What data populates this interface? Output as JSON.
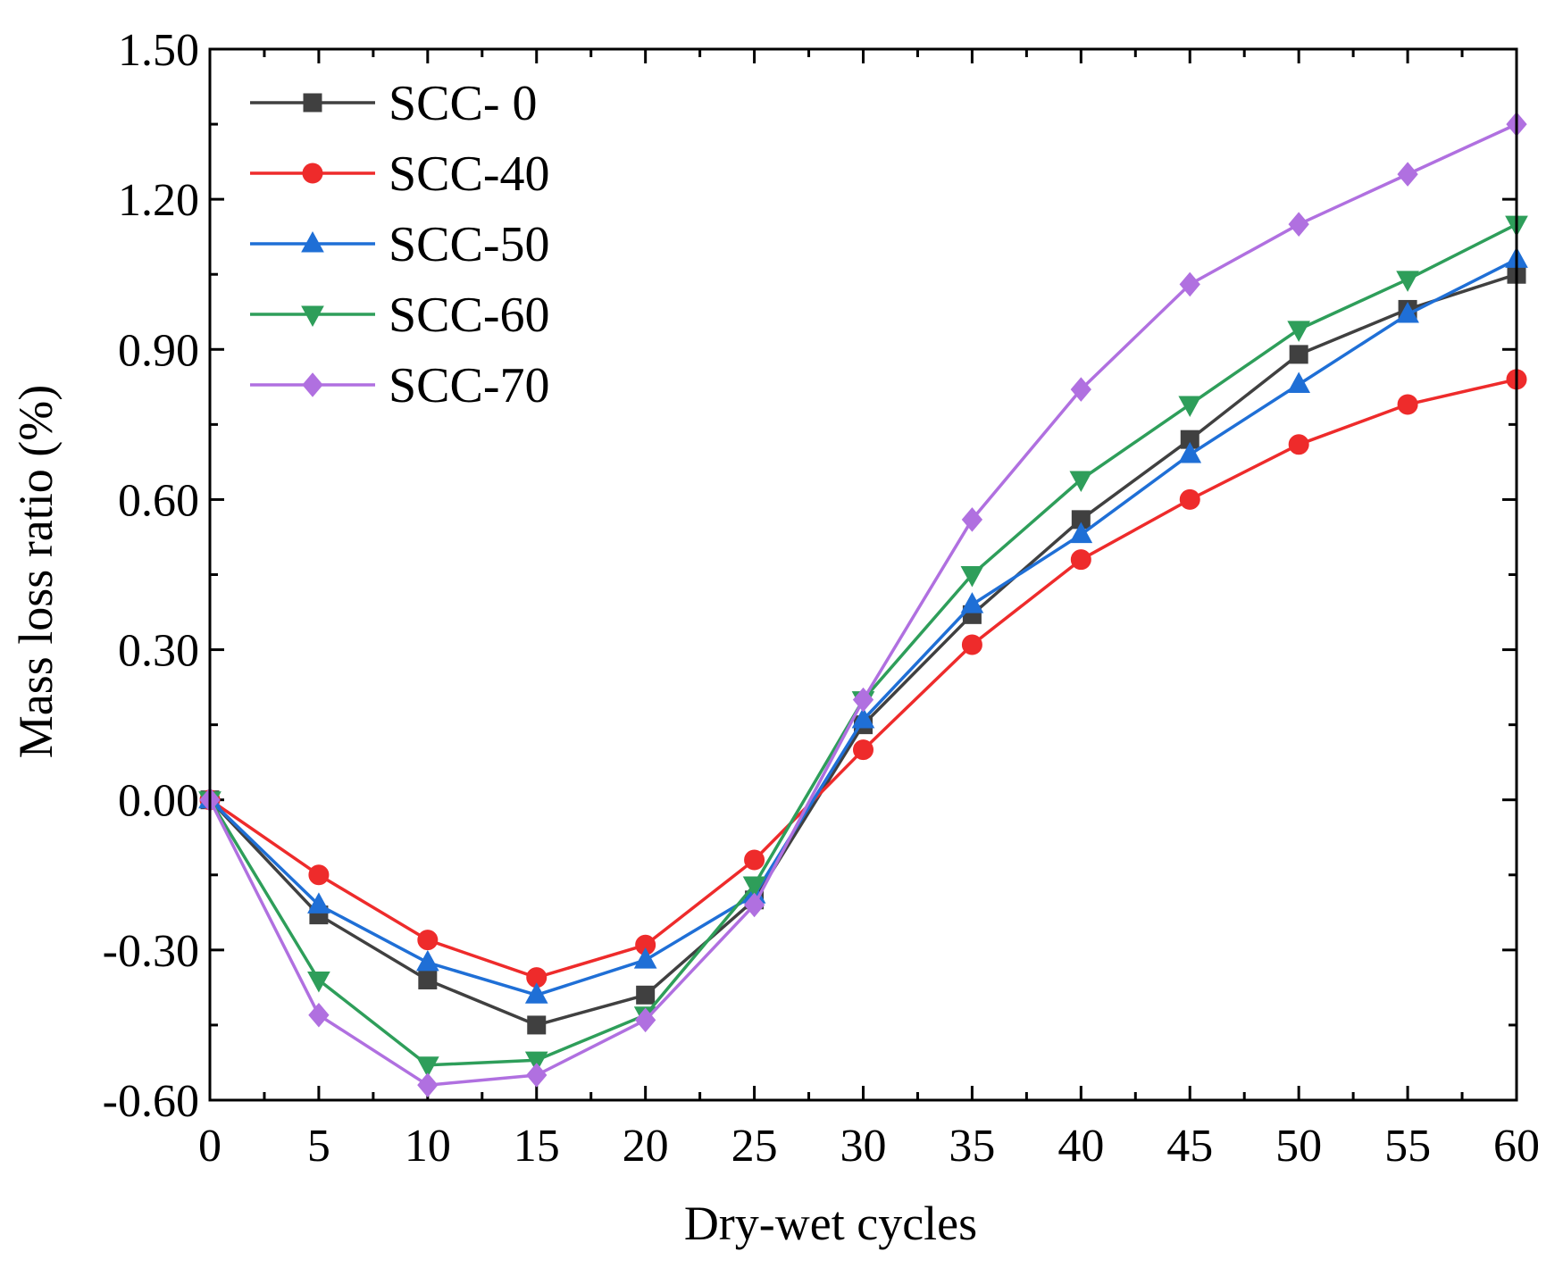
{
  "chart_data": {
    "type": "line",
    "title": "",
    "xlabel": "Dry-wet cycles",
    "ylabel": "Mass loss ratio (%)",
    "xlim": [
      0,
      60
    ],
    "ylim": [
      -0.6,
      1.5
    ],
    "x": [
      0,
      5,
      10,
      15,
      20,
      25,
      30,
      35,
      40,
      45,
      50,
      55,
      60
    ],
    "xticks": [
      "0",
      "5",
      "10",
      "15",
      "20",
      "25",
      "30",
      "35",
      "40",
      "45",
      "50",
      "55",
      "60"
    ],
    "yticks": [
      {
        "value": -0.6,
        "label": "-0.60"
      },
      {
        "value": -0.3,
        "label": "-0.30"
      },
      {
        "value": 0.0,
        "label": "0.00"
      },
      {
        "value": 0.3,
        "label": "0.30"
      },
      {
        "value": 0.6,
        "label": "0.60"
      },
      {
        "value": 0.9,
        "label": "0.90"
      },
      {
        "value": 1.2,
        "label": "1.20"
      },
      {
        "value": 1.5,
        "label": "1.50"
      }
    ],
    "grid": false,
    "legend_position": "top-left",
    "series": [
      {
        "name": "SCC- 0",
        "color": "#404040",
        "marker": "square",
        "values": [
          0,
          -0.23,
          -0.36,
          -0.45,
          -0.39,
          -0.2,
          0.15,
          0.37,
          0.56,
          0.72,
          0.89,
          0.98,
          1.05
        ]
      },
      {
        "name": "SCC-40",
        "color": "#ee2b2b",
        "marker": "circle",
        "values": [
          0,
          -0.15,
          -0.28,
          -0.355,
          -0.29,
          -0.12,
          0.1,
          0.31,
          0.48,
          0.6,
          0.71,
          0.79,
          0.84
        ]
      },
      {
        "name": "SCC-50",
        "color": "#1f6fd6",
        "marker": "triangle-up",
        "values": [
          0,
          -0.21,
          -0.325,
          -0.39,
          -0.32,
          -0.19,
          0.16,
          0.39,
          0.53,
          0.69,
          0.83,
          0.97,
          1.08
        ]
      },
      {
        "name": "SCC-60",
        "color": "#2e9e5a",
        "marker": "triangle-down",
        "values": [
          0,
          -0.36,
          -0.53,
          -0.52,
          -0.43,
          -0.17,
          0.2,
          0.45,
          0.64,
          0.79,
          0.94,
          1.04,
          1.15
        ]
      },
      {
        "name": "SCC-70",
        "color": "#b070e0",
        "marker": "diamond",
        "values": [
          0,
          -0.43,
          -0.57,
          -0.55,
          -0.44,
          -0.21,
          0.2,
          0.56,
          0.82,
          1.03,
          1.15,
          1.25,
          1.35
        ]
      }
    ]
  }
}
